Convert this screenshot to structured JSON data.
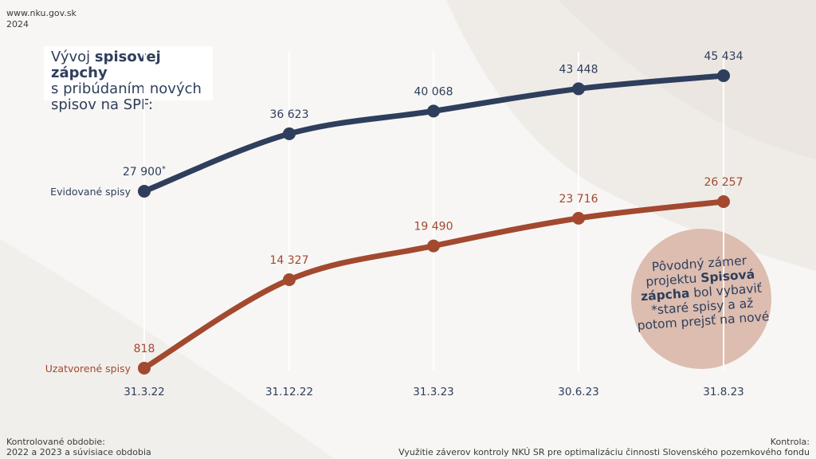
{
  "header": {
    "site": "www.nku.gov.sk",
    "year": "2024"
  },
  "title": {
    "line1_pre": "Vývoj ",
    "line1_bold": "spisovej zápchy",
    "line2": "s pribúdaním nových",
    "line3": "spisov na SPF:"
  },
  "note": {
    "part1": "Pôvodný zámer projektu ",
    "bold": "Spisová zápcha",
    "part2": " bol vybaviť *staré spisy a až potom prejsť na nové"
  },
  "footer": {
    "left_line1": "Kontrolované obdobie:",
    "left_line2": "2022 a 2023 a súvisiace obdobia",
    "right_line1": "Kontrola:",
    "right_line2": "Využitie záverov kontroly NKÚ SR pre optimalizáciu činnosti Slovenského pozemkového fondu"
  },
  "colors": {
    "navy": "#2f3e5c",
    "rust": "#a2492f",
    "circle": "#dcbdb0"
  },
  "chart_data": {
    "type": "line",
    "categories": [
      "31.3.22",
      "31.12.22",
      "31.3.23",
      "30.6.23",
      "31.8.23"
    ],
    "series": [
      {
        "name": "Evidované spisy",
        "values": [
          27900,
          36623,
          40068,
          43448,
          45434
        ],
        "labels": [
          "27 900",
          "36 623",
          "40 068",
          "43 448",
          "45 434"
        ],
        "first_label_suffix": "*",
        "color": "#2f3e5c"
      },
      {
        "name": "Uzatvorené spisy",
        "values": [
          818,
          14327,
          19490,
          23716,
          26257
        ],
        "labels": [
          "818",
          "14 327",
          "19 490",
          "23 716",
          "26 257"
        ],
        "color": "#a2492f"
      }
    ]
  }
}
